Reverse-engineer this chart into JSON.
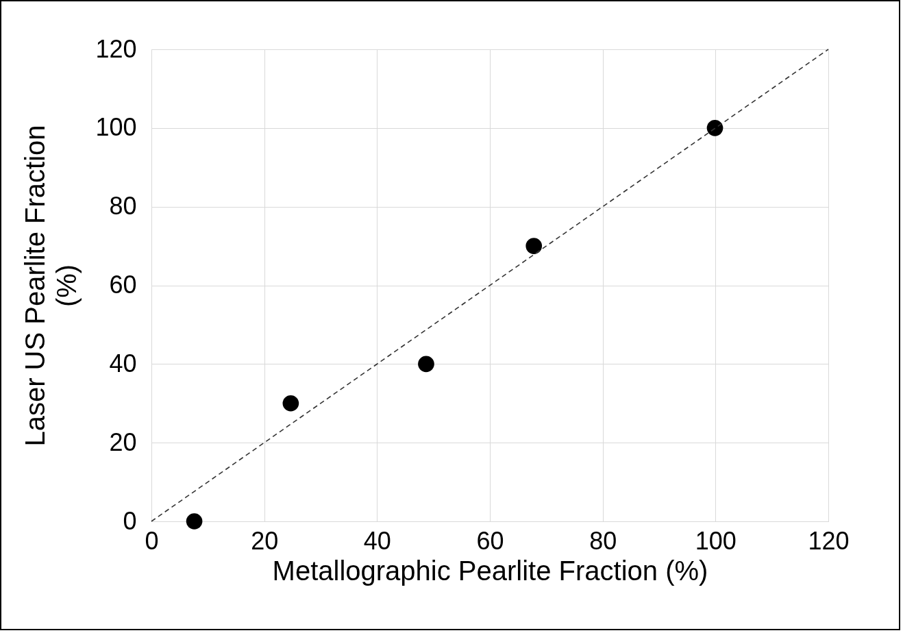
{
  "chart_data": {
    "type": "scatter",
    "xlabel": "Metallographic Pearlite Fraction (%)",
    "ylabel": "Laser US Pearlite Fraction (%)",
    "xlim": [
      0,
      120
    ],
    "ylim": [
      0,
      120
    ],
    "xticks": [
      0,
      20,
      40,
      60,
      80,
      100,
      120
    ],
    "yticks": [
      0,
      20,
      40,
      60,
      80,
      100,
      120
    ],
    "grid": true,
    "series": [
      {
        "color": "#000000",
        "marker": "circle",
        "x": [
          7.6,
          24.7,
          48.7,
          67.8,
          99.9
        ],
        "values": [
          0,
          30,
          40,
          70,
          100
        ]
      },
      {
        "type": "line",
        "color": "#333333",
        "line_style": "dashed",
        "marker": "none",
        "x": [
          0,
          120
        ],
        "values": [
          0,
          120
        ]
      }
    ]
  }
}
